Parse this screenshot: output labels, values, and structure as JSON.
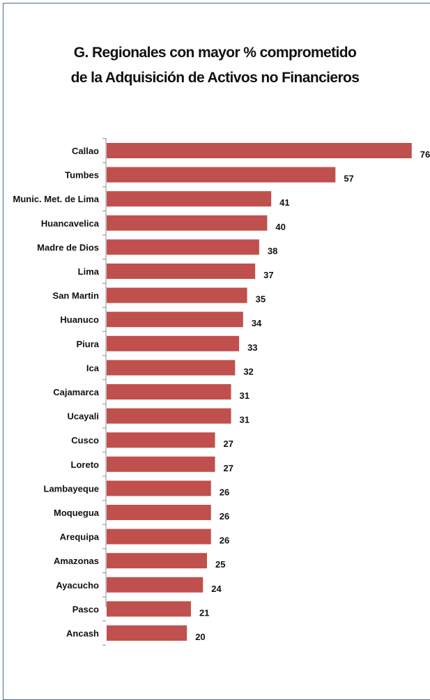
{
  "chart_data": {
    "type": "bar",
    "orientation": "horizontal",
    "title": "G. Regionales con mayor % comprometido de la Adquisición de Activos no Financieros",
    "title_lines": [
      "G. Regionales con mayor % comprometido",
      "de la Adquisición de Activos no Financieros"
    ],
    "categories": [
      "Callao",
      "Tumbes",
      "Munic. Met. de Lima",
      "Huancavelica",
      "Madre de Dios",
      "Lima",
      "San Martin",
      "Huanuco",
      "Piura",
      "Ica",
      "Cajamarca",
      "Ucayali",
      "Cusco",
      "Loreto",
      "Lambayeque",
      "Moquegua",
      "Arequipa",
      "Amazonas",
      "Ayacucho",
      "Pasco",
      "Ancash"
    ],
    "values": [
      76,
      57,
      41,
      40,
      38,
      37,
      35,
      34,
      33,
      32,
      31,
      31,
      27,
      27,
      26,
      26,
      26,
      25,
      24,
      21,
      20
    ],
    "xlim": [
      0,
      80
    ],
    "grid": false,
    "legend": "none",
    "data_labels": true,
    "bar_color": "#c0504d",
    "axis_color": "#8c8c8c",
    "xlabel": "",
    "ylabel": ""
  }
}
